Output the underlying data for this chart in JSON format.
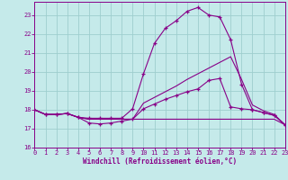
{
  "background_color": "#c5eaea",
  "grid_color": "#9ecece",
  "line_color": "#880088",
  "xlabel": "Windchill (Refroidissement éolien,°C)",
  "xlim": [
    0,
    23
  ],
  "ylim": [
    16,
    23.7
  ],
  "yticks": [
    16,
    17,
    18,
    19,
    20,
    21,
    22,
    23
  ],
  "xticks": [
    0,
    1,
    2,
    3,
    4,
    5,
    6,
    7,
    8,
    9,
    10,
    11,
    12,
    13,
    14,
    15,
    16,
    17,
    18,
    19,
    20,
    21,
    22,
    23
  ],
  "series": [
    {
      "x": [
        0,
        1,
        2,
        3,
        4,
        5,
        6,
        7,
        8,
        9,
        10,
        11,
        12,
        13,
        14,
        15,
        16,
        17,
        18,
        19,
        20,
        21,
        22,
        23
      ],
      "y": [
        18.0,
        17.75,
        17.75,
        17.8,
        17.6,
        17.55,
        17.55,
        17.55,
        17.55,
        18.05,
        19.9,
        21.5,
        22.3,
        22.7,
        23.2,
        23.4,
        23.0,
        22.9,
        21.7,
        19.35,
        18.0,
        17.85,
        17.7,
        17.2
      ],
      "marker": true
    },
    {
      "x": [
        0,
        1,
        2,
        3,
        4,
        5,
        6,
        7,
        8,
        9,
        10,
        11,
        12,
        13,
        14,
        15,
        16,
        17,
        18,
        19,
        20,
        21,
        22,
        23
      ],
      "y": [
        18.0,
        17.75,
        17.75,
        17.8,
        17.6,
        17.3,
        17.25,
        17.3,
        17.4,
        17.5,
        18.05,
        18.3,
        18.55,
        18.75,
        18.95,
        19.1,
        19.55,
        19.65,
        18.15,
        18.05,
        18.0,
        17.85,
        17.7,
        17.2
      ],
      "marker": true
    },
    {
      "x": [
        0,
        1,
        2,
        3,
        4,
        5,
        6,
        7,
        8,
        9,
        10,
        11,
        12,
        13,
        14,
        15,
        16,
        17,
        18,
        19,
        20,
        21,
        22,
        23
      ],
      "y": [
        18.0,
        17.75,
        17.75,
        17.8,
        17.6,
        17.5,
        17.5,
        17.5,
        17.5,
        17.5,
        17.5,
        17.5,
        17.5,
        17.5,
        17.5,
        17.5,
        17.5,
        17.5,
        17.5,
        17.5,
        17.5,
        17.5,
        17.5,
        17.2
      ],
      "marker": false
    },
    {
      "x": [
        0,
        1,
        2,
        3,
        4,
        5,
        6,
        7,
        8,
        9,
        10,
        11,
        12,
        13,
        14,
        15,
        16,
        17,
        18,
        19,
        20,
        21,
        22,
        23
      ],
      "y": [
        18.0,
        17.75,
        17.75,
        17.8,
        17.6,
        17.5,
        17.5,
        17.5,
        17.5,
        17.5,
        18.35,
        18.65,
        18.95,
        19.25,
        19.6,
        19.9,
        20.2,
        20.5,
        20.8,
        19.6,
        18.25,
        17.95,
        17.75,
        17.2
      ],
      "marker": false
    }
  ]
}
